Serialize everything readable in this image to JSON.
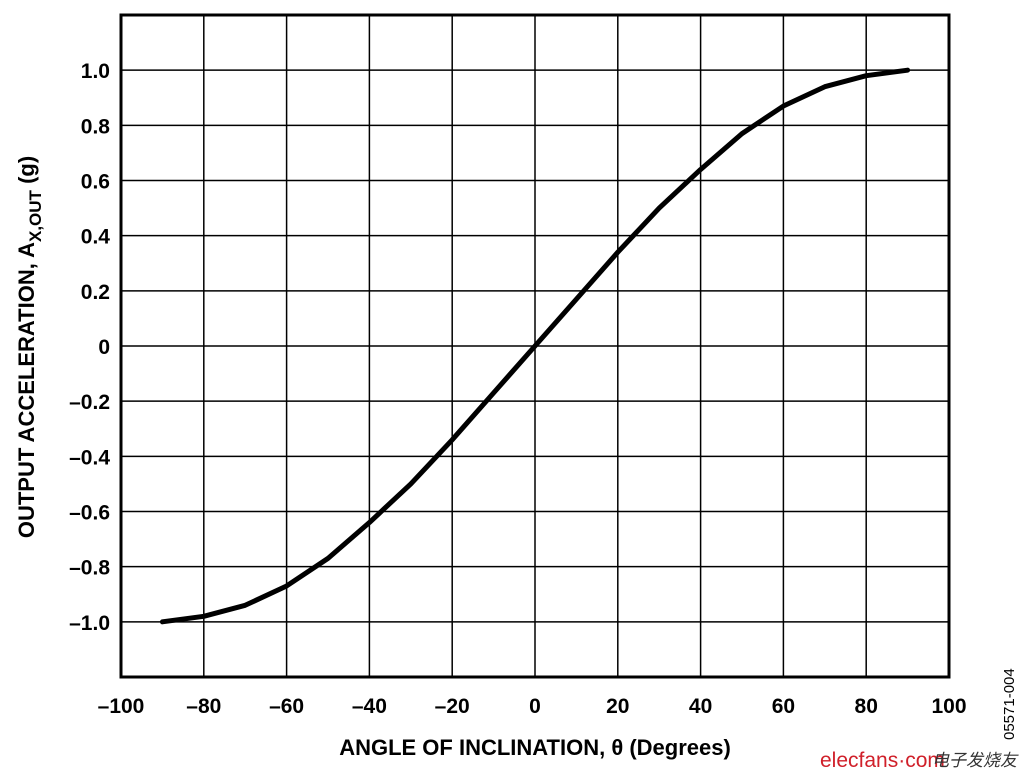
{
  "chart_data": {
    "type": "line",
    "title": "",
    "xlabel": "ANGLE OF INCLINATION, θ (Degrees)",
    "ylabel": {
      "main": "OUTPUT ACCELERATION, A",
      "subscript": "X,OUT",
      "unit": "(g)"
    },
    "xlim": [
      -100,
      100
    ],
    "ylim": [
      -1.2,
      1.2
    ],
    "grid": true,
    "x_ticks": [
      "–100",
      "–80",
      "–60",
      "–40",
      "–20",
      "0",
      "20",
      "40",
      "60",
      "80",
      "100"
    ],
    "x_tick_values": [
      -100,
      -80,
      -60,
      -40,
      -20,
      0,
      20,
      40,
      60,
      80,
      100
    ],
    "y_ticks": [
      "1.0",
      "0.8",
      "0.6",
      "0.4",
      "0.2",
      "0",
      "–0.2",
      "–0.4",
      "–0.6",
      "–0.8",
      "–1.0"
    ],
    "y_tick_values": [
      1.0,
      0.8,
      0.6,
      0.4,
      0.2,
      0,
      -0.2,
      -0.4,
      -0.6,
      -0.8,
      -1.0
    ],
    "series": [
      {
        "x": [
          -90,
          -80,
          -70,
          -60,
          -50,
          -40,
          -30,
          -20,
          -10,
          0,
          10,
          20,
          30,
          40,
          50,
          60,
          70,
          80,
          90
        ],
        "y": [
          -1.0,
          -0.98,
          -0.94,
          -0.87,
          -0.77,
          -0.64,
          -0.5,
          -0.34,
          -0.17,
          0,
          0.17,
          0.34,
          0.5,
          0.64,
          0.77,
          0.87,
          0.94,
          0.98,
          1.0
        ],
        "color": "#000000"
      }
    ]
  },
  "figure_code": "05571-004",
  "watermark": {
    "logo": "elecfans·com",
    "cn": "电子发烧友"
  }
}
